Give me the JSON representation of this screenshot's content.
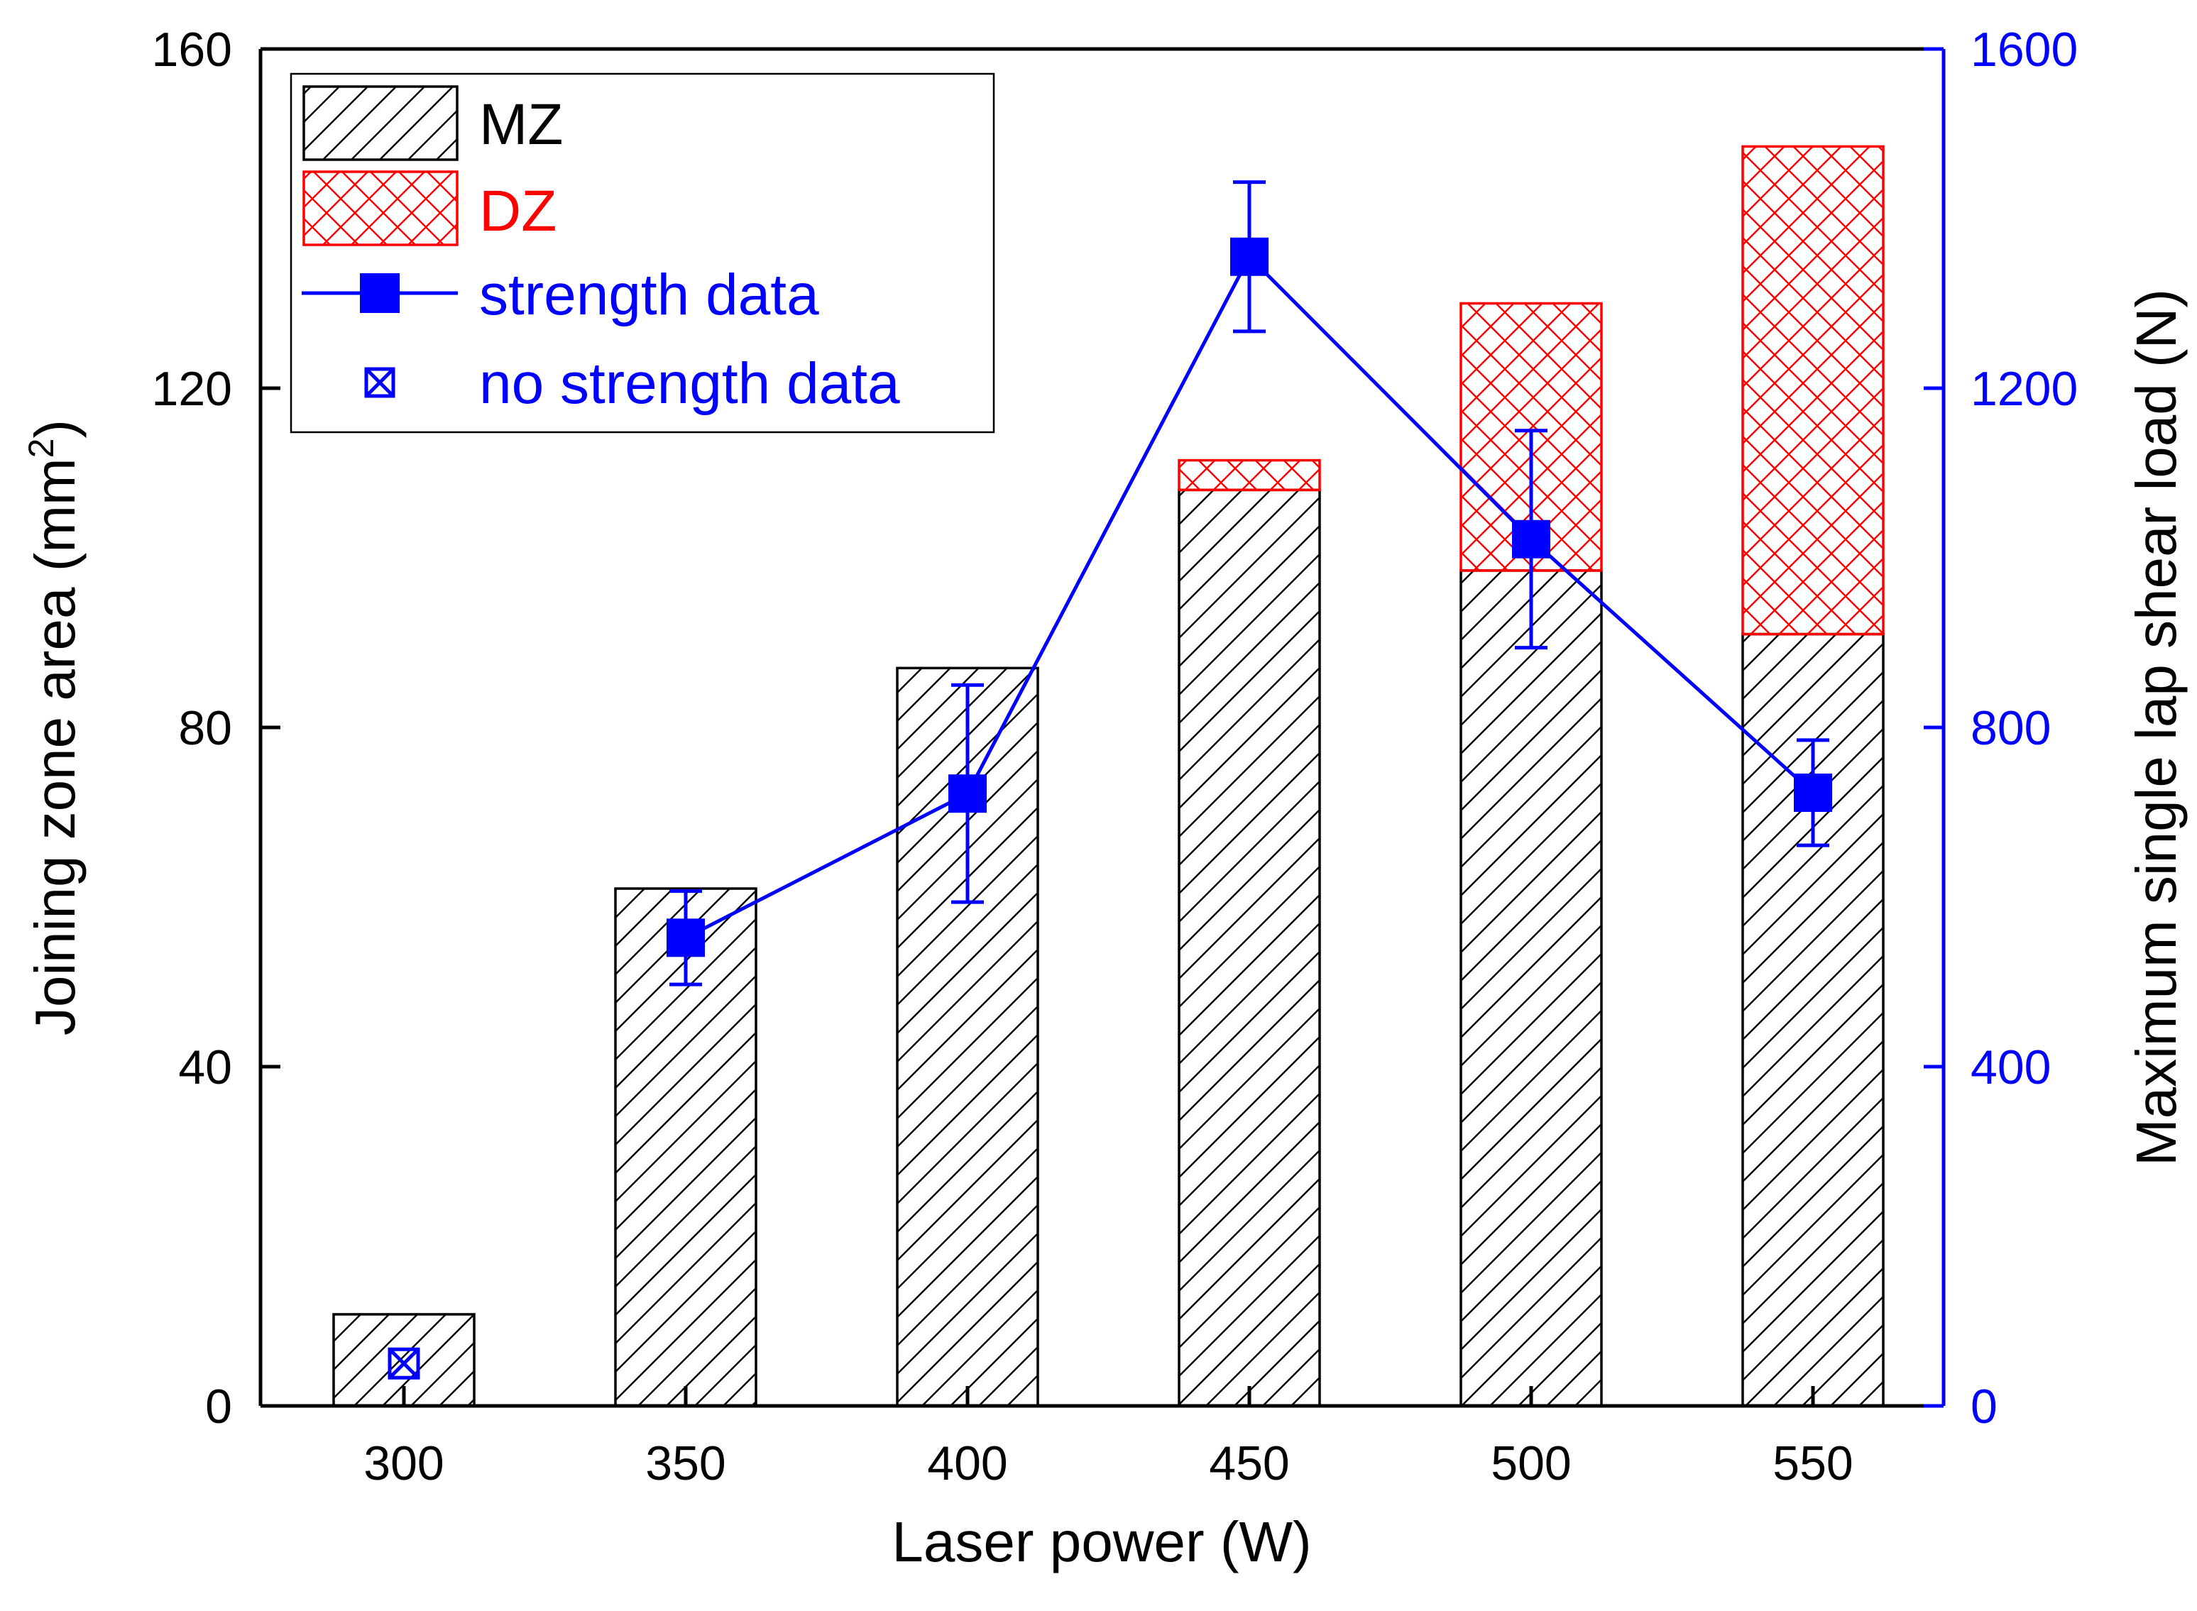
{
  "chart_data": {
    "type": "bar",
    "stacked": true,
    "categories": [
      "300",
      "350",
      "400",
      "450",
      "500",
      "550"
    ],
    "xlabel": "Laser power (W)",
    "ylabel_left": "Joining zone area (mm",
    "ylabel_left_superscript": "2",
    "ylabel_left_suffix": ")",
    "ylabel_right": "Maximum single lap shear load (N)",
    "ylim_left": [
      0,
      160
    ],
    "yticks_left": [
      "0",
      "40",
      "80",
      "120",
      "160"
    ],
    "ylim_right": [
      0,
      1600
    ],
    "yticks_right": [
      "0",
      "400",
      "800",
      "1200",
      "1600"
    ],
    "series": [
      {
        "name": "MZ",
        "axis": "left",
        "pattern": "hatch",
        "values": [
          10.8,
          61,
          87,
          108,
          98.5,
          91
        ]
      },
      {
        "name": "DZ",
        "axis": "left",
        "pattern": "crosshatch",
        "values": [
          0,
          0,
          0,
          3.5,
          31.5,
          57.5
        ]
      },
      {
        "name": "strength data",
        "axis": "right",
        "type": "line",
        "marker": "filled-square",
        "values": [
          null,
          552,
          722,
          1355,
          1022,
          723
        ],
        "error": [
          null,
          55,
          128,
          88,
          128,
          62
        ]
      },
      {
        "name": "no strength data",
        "axis": "right",
        "type": "scatter",
        "marker": "crossed-square",
        "values": [
          50,
          null,
          null,
          null,
          null,
          null
        ]
      }
    ],
    "legend": {
      "position": "top-left",
      "entries": [
        "MZ",
        "DZ",
        "strength data",
        "no strength data"
      ]
    },
    "colors": {
      "mz_edge": "#000000",
      "dz_edge": "#ff0000",
      "dz_text": "#ff0000",
      "strength": "#0000ff",
      "right_axis": "#0000ff"
    }
  }
}
